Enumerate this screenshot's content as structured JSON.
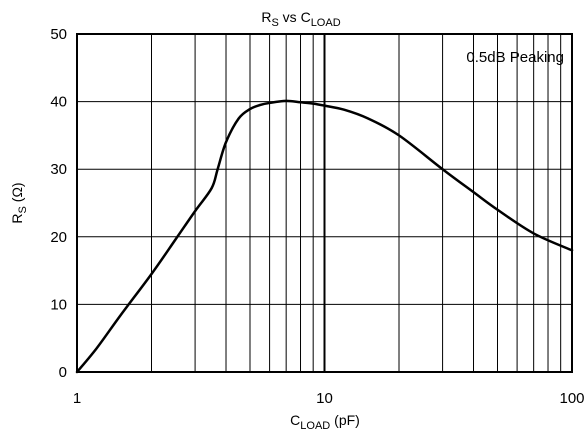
{
  "chart_data": {
    "type": "line",
    "title": {
      "main": "R",
      "main_sub": "S",
      "mid": " vs C",
      "end_sub": "LOAD"
    },
    "xlabel": {
      "main": "C",
      "sub": "LOAD",
      "unit": " (pF)"
    },
    "ylabel": {
      "main": "R",
      "sub": "S",
      "unit": " (Ω)"
    },
    "xscale": "log",
    "xlim": [
      1,
      100
    ],
    "ylim": [
      0,
      50
    ],
    "grid": true,
    "x_ticks": [
      1,
      10,
      100
    ],
    "x_tick_labels": [
      "1",
      "10",
      "100"
    ],
    "y_ticks": [
      0,
      10,
      20,
      30,
      40,
      50
    ],
    "y_tick_labels": [
      "0",
      "10",
      "20",
      "30",
      "40",
      "50"
    ],
    "annotation": "0.5dB Peaking",
    "line_color": "#000000",
    "series": [
      {
        "x": [
          1,
          1.2,
          1.5,
          2,
          2.5,
          3,
          3.5,
          3.7,
          4,
          4.5,
          5,
          5.5,
          6,
          7,
          8,
          9,
          10,
          12,
          15,
          20,
          30,
          40,
          50,
          70,
          100
        ],
        "y": [
          0,
          3.5,
          8.4,
          14.5,
          19.6,
          23.8,
          27.2,
          30.0,
          34.0,
          37.5,
          38.9,
          39.5,
          39.8,
          40.1,
          39.9,
          39.7,
          39.4,
          38.8,
          37.5,
          35.0,
          30.0,
          26.6,
          24.0,
          20.5,
          18.0
        ]
      }
    ]
  }
}
